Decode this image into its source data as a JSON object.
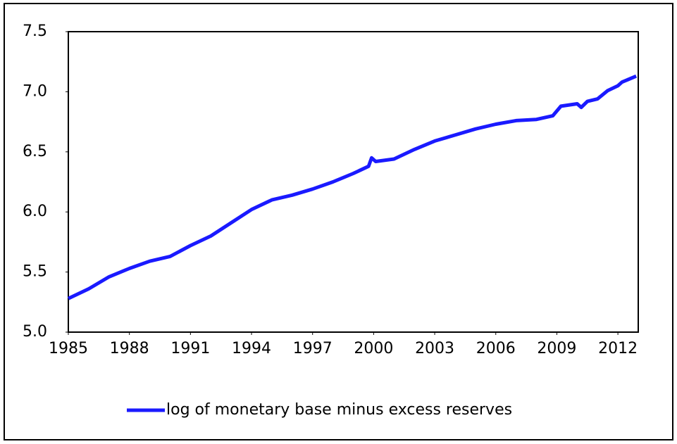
{
  "chart_data": {
    "type": "line",
    "x": [
      1985,
      1986,
      1987,
      1988,
      1989,
      1990,
      1991,
      1992,
      1993,
      1994,
      1995,
      1996,
      1997,
      1998,
      1999,
      1999.75,
      1999.9,
      2000.1,
      2001,
      2002,
      2003,
      2004,
      2005,
      2006,
      2007,
      2008,
      2008.8,
      2009.2,
      2010,
      2010.2,
      2010.5,
      2011,
      2011.5,
      2012,
      2012.2,
      2012.9
    ],
    "series": [
      {
        "name": "log of monetary base minus excess reserves",
        "color": "#1a1aff",
        "values": [
          5.28,
          5.36,
          5.46,
          5.53,
          5.59,
          5.63,
          5.72,
          5.8,
          5.91,
          6.02,
          6.1,
          6.14,
          6.19,
          6.25,
          6.32,
          6.38,
          6.45,
          6.42,
          6.44,
          6.52,
          6.59,
          6.64,
          6.69,
          6.73,
          6.76,
          6.77,
          6.8,
          6.88,
          6.9,
          6.87,
          6.92,
          6.94,
          7.01,
          7.05,
          7.08,
          7.13
        ]
      }
    ],
    "xlim": [
      1985,
      2013
    ],
    "xticks": [
      1985,
      1988,
      1991,
      1994,
      1997,
      2000,
      2003,
      2006,
      2009,
      2012
    ],
    "ylim": [
      5,
      7.5
    ],
    "yticks": [
      {
        "value": 5,
        "label": "5.0"
      },
      5.5,
      {
        "value": 6,
        "label": "6.0"
      },
      6.5,
      {
        "value": 7,
        "label": "7.0"
      },
      7.5
    ],
    "legend": "bottom"
  }
}
